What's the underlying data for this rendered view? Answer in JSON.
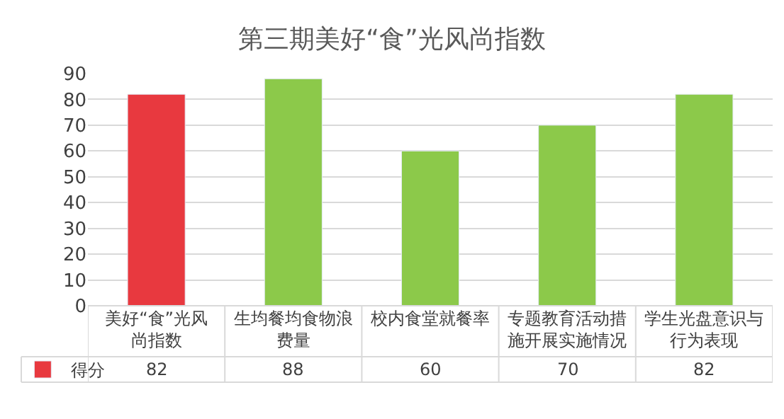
{
  "chart_data": {
    "type": "bar",
    "title": "第三期美好“食”光风尚指数",
    "categories": [
      "美好“食”光风尚指数",
      "生均餐均食物浪费量",
      "校内食堂就餐率",
      "专题教育活动措施开展实施情况",
      "学生光盘意识与行为表现"
    ],
    "series": [
      {
        "name": "得分",
        "color": "#e8393f",
        "colors": [
          "#e8393f",
          "#8cc94a",
          "#8cc94a",
          "#8cc94a",
          "#8cc94a"
        ],
        "values": [
          82,
          88,
          60,
          70,
          82
        ]
      }
    ],
    "ylim": [
      0,
      90
    ],
    "yticks": [
      0,
      10,
      20,
      30,
      40,
      50,
      60,
      70,
      80,
      90
    ],
    "grid": "y",
    "legend": "bottom left",
    "data_labels": true
  }
}
